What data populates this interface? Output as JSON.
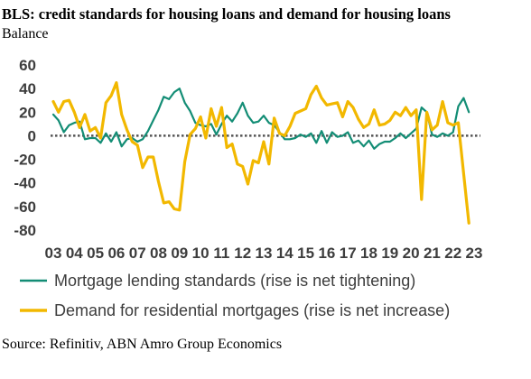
{
  "chart_data": {
    "type": "line",
    "title": "BLS: credit standards for housing loans and demand for housing loans",
    "subtitle": "Balance",
    "source": "Source: Refinitiv, ABN Amro Group Economics",
    "x_ticks": [
      "03",
      "04",
      "05",
      "06",
      "07",
      "08",
      "09",
      "10",
      "11",
      "12",
      "13",
      "14",
      "15",
      "16",
      "17",
      "18",
      "19",
      "20",
      "21",
      "22",
      "23"
    ],
    "x_start": 2003.0,
    "ylim": [
      -80,
      60
    ],
    "y_ticks": [
      60,
      40,
      20,
      0,
      -20,
      -40,
      -60,
      -80
    ],
    "grid": false,
    "legend_position": "bottom",
    "series": [
      {
        "name": "Mortgage lending standards (rise is net tightening)",
        "color": "#138d75",
        "values": [
          [
            2003.0,
            18
          ],
          [
            2003.25,
            13
          ],
          [
            2003.5,
            3
          ],
          [
            2003.75,
            9
          ],
          [
            2004.0,
            11
          ],
          [
            2004.25,
            12
          ],
          [
            2004.5,
            -3
          ],
          [
            2004.75,
            -2
          ],
          [
            2005.0,
            -2
          ],
          [
            2005.25,
            -6
          ],
          [
            2005.5,
            2
          ],
          [
            2005.75,
            -5
          ],
          [
            2006.0,
            3
          ],
          [
            2006.25,
            -9
          ],
          [
            2006.5,
            -3
          ],
          [
            2006.75,
            -2
          ],
          [
            2007.0,
            -5
          ],
          [
            2007.25,
            -3
          ],
          [
            2007.5,
            4
          ],
          [
            2007.75,
            13
          ],
          [
            2008.0,
            22
          ],
          [
            2008.25,
            33
          ],
          [
            2008.5,
            31
          ],
          [
            2008.75,
            37
          ],
          [
            2009.0,
            40
          ],
          [
            2009.25,
            28
          ],
          [
            2009.5,
            21
          ],
          [
            2009.75,
            11
          ],
          [
            2010.0,
            9
          ],
          [
            2010.25,
            8
          ],
          [
            2010.5,
            10
          ],
          [
            2010.75,
            1
          ],
          [
            2011.0,
            10
          ],
          [
            2011.25,
            17
          ],
          [
            2011.5,
            12
          ],
          [
            2011.75,
            19
          ],
          [
            2012.0,
            28
          ],
          [
            2012.25,
            17
          ],
          [
            2012.5,
            11
          ],
          [
            2012.75,
            12
          ],
          [
            2013.0,
            17
          ],
          [
            2013.25,
            11
          ],
          [
            2013.5,
            9
          ],
          [
            2013.75,
            3
          ],
          [
            2014.0,
            -3
          ],
          [
            2014.25,
            -3
          ],
          [
            2014.5,
            -2
          ],
          [
            2014.75,
            1
          ],
          [
            2015.0,
            -1
          ],
          [
            2015.25,
            2
          ],
          [
            2015.5,
            -6
          ],
          [
            2015.75,
            4
          ],
          [
            2016.0,
            -6
          ],
          [
            2016.25,
            3
          ],
          [
            2016.5,
            -1
          ],
          [
            2016.75,
            0
          ],
          [
            2017.0,
            3
          ],
          [
            2017.25,
            -6
          ],
          [
            2017.5,
            -4
          ],
          [
            2017.75,
            -9
          ],
          [
            2018.0,
            -4
          ],
          [
            2018.25,
            -11
          ],
          [
            2018.5,
            -7
          ],
          [
            2018.75,
            -5
          ],
          [
            2019.0,
            -5
          ],
          [
            2019.25,
            -2
          ],
          [
            2019.5,
            2
          ],
          [
            2019.75,
            -2
          ],
          [
            2020.0,
            2
          ],
          [
            2020.25,
            6
          ],
          [
            2020.5,
            24
          ],
          [
            2020.75,
            20
          ],
          [
            2021.0,
            1
          ],
          [
            2021.25,
            -1
          ],
          [
            2021.5,
            2
          ],
          [
            2021.75,
            0
          ],
          [
            2022.0,
            3
          ],
          [
            2022.25,
            25
          ],
          [
            2022.5,
            32
          ],
          [
            2022.75,
            20
          ]
        ]
      },
      {
        "name": "Demand for residential mortgages (rise is net increase)",
        "color": "#f2b800",
        "values": [
          [
            2003.0,
            29
          ],
          [
            2003.25,
            20
          ],
          [
            2003.5,
            29
          ],
          [
            2003.75,
            30
          ],
          [
            2004.0,
            20
          ],
          [
            2004.25,
            7
          ],
          [
            2004.5,
            18
          ],
          [
            2004.75,
            4
          ],
          [
            2005.0,
            7
          ],
          [
            2005.25,
            -2
          ],
          [
            2005.5,
            28
          ],
          [
            2005.75,
            34
          ],
          [
            2006.0,
            45
          ],
          [
            2006.25,
            18
          ],
          [
            2006.5,
            5
          ],
          [
            2006.75,
            -5
          ],
          [
            2007.0,
            -8
          ],
          [
            2007.25,
            -27
          ],
          [
            2007.5,
            -18
          ],
          [
            2007.75,
            -18
          ],
          [
            2008.0,
            -39
          ],
          [
            2008.25,
            -57
          ],
          [
            2008.5,
            -56
          ],
          [
            2008.75,
            -62
          ],
          [
            2009.0,
            -63
          ],
          [
            2009.25,
            -22
          ],
          [
            2009.5,
            1
          ],
          [
            2009.75,
            6
          ],
          [
            2010.0,
            16
          ],
          [
            2010.25,
            -2
          ],
          [
            2010.5,
            23
          ],
          [
            2010.75,
            8
          ],
          [
            2011.0,
            24
          ],
          [
            2011.25,
            -10
          ],
          [
            2011.5,
            -7
          ],
          [
            2011.75,
            -24
          ],
          [
            2012.0,
            -26
          ],
          [
            2012.25,
            -41
          ],
          [
            2012.5,
            -21
          ],
          [
            2012.75,
            -23
          ],
          [
            2013.0,
            -5
          ],
          [
            2013.25,
            -24
          ],
          [
            2013.5,
            15
          ],
          [
            2013.75,
            2
          ],
          [
            2014.0,
            0
          ],
          [
            2014.25,
            8
          ],
          [
            2014.5,
            19
          ],
          [
            2014.75,
            21
          ],
          [
            2015.0,
            23
          ],
          [
            2015.25,
            35
          ],
          [
            2015.5,
            42
          ],
          [
            2015.75,
            32
          ],
          [
            2016.0,
            26
          ],
          [
            2016.25,
            27
          ],
          [
            2016.5,
            28
          ],
          [
            2016.75,
            16
          ],
          [
            2017.0,
            29
          ],
          [
            2017.25,
            24
          ],
          [
            2017.5,
            14
          ],
          [
            2017.75,
            7
          ],
          [
            2018.0,
            10
          ],
          [
            2018.25,
            22
          ],
          [
            2018.5,
            9
          ],
          [
            2018.75,
            10
          ],
          [
            2019.0,
            13
          ],
          [
            2019.25,
            20
          ],
          [
            2019.5,
            17
          ],
          [
            2019.75,
            24
          ],
          [
            2020.0,
            17
          ],
          [
            2020.25,
            22
          ],
          [
            2020.5,
            -54
          ],
          [
            2020.75,
            20
          ],
          [
            2021.0,
            5
          ],
          [
            2021.25,
            9
          ],
          [
            2021.5,
            29
          ],
          [
            2021.75,
            11
          ],
          [
            2022.0,
            9
          ],
          [
            2022.25,
            11
          ],
          [
            2022.5,
            -32
          ],
          [
            2022.75,
            -74
          ]
        ]
      }
    ]
  }
}
